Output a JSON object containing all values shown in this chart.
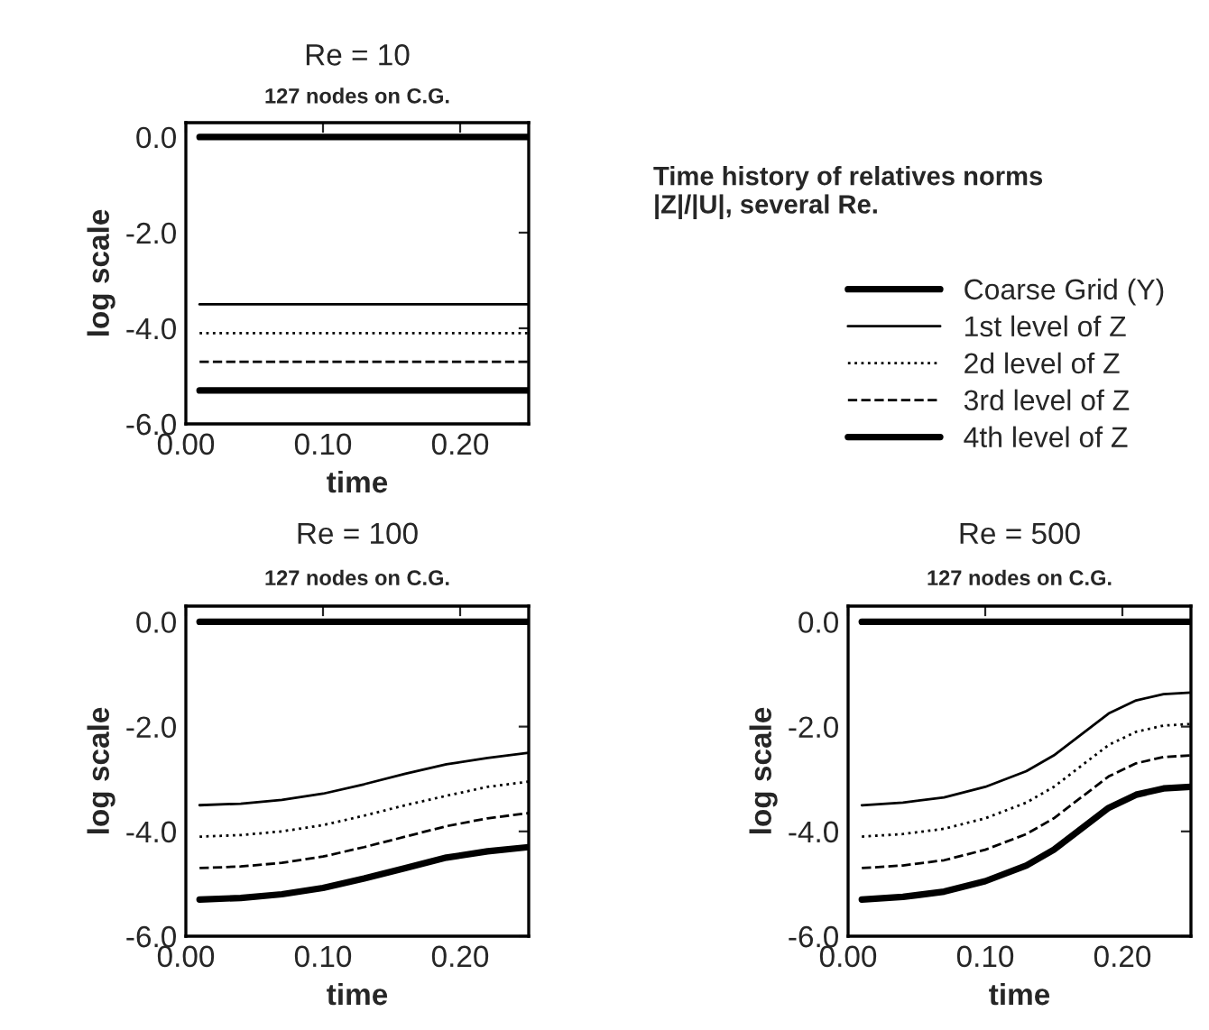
{
  "chart_data": [
    {
      "type": "line",
      "title": "Re = 10",
      "subtitle": "127 nodes on C.G.",
      "xlabel": "time",
      "ylabel": "log scale",
      "xlim": [
        0,
        0.25
      ],
      "ylim": [
        -6,
        0.3
      ],
      "xticks": [
        {
          "value": 0,
          "label": "0.00"
        },
        {
          "value": 0.1,
          "label": "0.10"
        },
        {
          "value": 0.2,
          "label": "0.20"
        }
      ],
      "yticks": [
        {
          "value": 0,
          "label": "0.0"
        },
        {
          "value": -2,
          "label": "-2.0"
        },
        {
          "value": -4,
          "label": "-4.0"
        },
        {
          "value": -6,
          "label": "-6.0"
        }
      ],
      "legend": "right",
      "annotations": [
        "Time history of relatives norms\n|Z|/|U|, several Re."
      ],
      "x": [
        0.01,
        0.07,
        0.13,
        0.19,
        0.25
      ],
      "series": [
        {
          "name": "Coarse Grid (Y)",
          "color": "#000000",
          "line_style": "solid",
          "values": [
            0,
            0,
            0,
            0,
            0
          ]
        },
        {
          "name": "1st level of Z",
          "color": "#000000",
          "line_style": "solid",
          "values": [
            -3.5,
            -3.5,
            -3.5,
            -3.5,
            -3.5
          ]
        },
        {
          "name": "2d level of Z",
          "color": "#000000",
          "line_style": "dotted",
          "values": [
            -4.1,
            -4.1,
            -4.1,
            -4.1,
            -4.1
          ]
        },
        {
          "name": "3rd level of Z",
          "color": "#000000",
          "line_style": "dashed",
          "values": [
            -4.7,
            -4.7,
            -4.7,
            -4.7,
            -4.7
          ]
        },
        {
          "name": "4th level of Z",
          "color": "#000000",
          "line_style": "solid",
          "values": [
            -5.3,
            -5.3,
            -5.3,
            -5.3,
            -5.3
          ]
        }
      ]
    },
    {
      "type": "line",
      "title": "Re = 100",
      "subtitle": "127 nodes on C.G.",
      "xlabel": "time",
      "ylabel": "log scale",
      "xlim": [
        0,
        0.25
      ],
      "ylim": [
        -6,
        0.3
      ],
      "xticks": [
        {
          "value": 0,
          "label": "0.00"
        },
        {
          "value": 0.1,
          "label": "0.10"
        },
        {
          "value": 0.2,
          "label": "0.20"
        }
      ],
      "yticks": [
        {
          "value": 0,
          "label": "0.0"
        },
        {
          "value": -2,
          "label": "-2.0"
        },
        {
          "value": -4,
          "label": "-4.0"
        },
        {
          "value": -6,
          "label": "-6.0"
        }
      ],
      "x": [
        0.01,
        0.04,
        0.07,
        0.1,
        0.13,
        0.16,
        0.19,
        0.22,
        0.25
      ],
      "series": [
        {
          "color": "#000000",
          "line_style": "solid",
          "values": [
            0,
            0,
            0,
            0,
            0,
            0,
            0,
            0,
            0
          ]
        },
        {
          "color": "#000000",
          "line_style": "solid",
          "values": [
            -3.5,
            -3.47,
            -3.4,
            -3.28,
            -3.1,
            -2.9,
            -2.72,
            -2.6,
            -2.5
          ]
        },
        {
          "color": "#000000",
          "line_style": "dotted",
          "values": [
            -4.1,
            -4.07,
            -4.0,
            -3.88,
            -3.7,
            -3.5,
            -3.32,
            -3.15,
            -3.05
          ]
        },
        {
          "color": "#000000",
          "line_style": "dashed",
          "values": [
            -4.7,
            -4.67,
            -4.6,
            -4.48,
            -4.3,
            -4.1,
            -3.9,
            -3.75,
            -3.65
          ]
        },
        {
          "color": "#000000",
          "line_style": "solid",
          "values": [
            -5.3,
            -5.27,
            -5.2,
            -5.08,
            -4.9,
            -4.7,
            -4.5,
            -4.38,
            -4.3
          ]
        }
      ]
    },
    {
      "type": "line",
      "title": "Re = 500",
      "subtitle": "127 nodes on C.G.",
      "xlabel": "time",
      "ylabel": "log scale",
      "xlim": [
        0,
        0.25
      ],
      "ylim": [
        -6,
        0.3
      ],
      "xticks": [
        {
          "value": 0,
          "label": "0.00"
        },
        {
          "value": 0.1,
          "label": "0.10"
        },
        {
          "value": 0.2,
          "label": "0.20"
        }
      ],
      "yticks": [
        {
          "value": 0,
          "label": "0.0"
        },
        {
          "value": -2,
          "label": "-2.0"
        },
        {
          "value": -4,
          "label": "-4.0"
        },
        {
          "value": -6,
          "label": "-6.0"
        }
      ],
      "x": [
        0.01,
        0.04,
        0.07,
        0.1,
        0.13,
        0.15,
        0.17,
        0.19,
        0.21,
        0.23,
        0.25
      ],
      "series": [
        {
          "color": "#000000",
          "line_style": "solid",
          "values": [
            0,
            0,
            0,
            0,
            0,
            0,
            0,
            0,
            0,
            0,
            0
          ]
        },
        {
          "color": "#000000",
          "line_style": "solid",
          "values": [
            -3.5,
            -3.45,
            -3.35,
            -3.15,
            -2.85,
            -2.55,
            -2.15,
            -1.75,
            -1.5,
            -1.38,
            -1.35
          ]
        },
        {
          "color": "#000000",
          "line_style": "dotted",
          "values": [
            -4.1,
            -4.05,
            -3.95,
            -3.75,
            -3.45,
            -3.15,
            -2.75,
            -2.35,
            -2.1,
            -1.98,
            -1.95
          ]
        },
        {
          "color": "#000000",
          "line_style": "dashed",
          "values": [
            -4.7,
            -4.65,
            -4.55,
            -4.35,
            -4.05,
            -3.75,
            -3.35,
            -2.95,
            -2.7,
            -2.58,
            -2.55
          ]
        },
        {
          "color": "#000000",
          "line_style": "solid",
          "values": [
            -5.3,
            -5.25,
            -5.15,
            -4.95,
            -4.65,
            -4.35,
            -3.95,
            -3.55,
            -3.3,
            -3.18,
            -3.15
          ]
        }
      ]
    }
  ]
}
